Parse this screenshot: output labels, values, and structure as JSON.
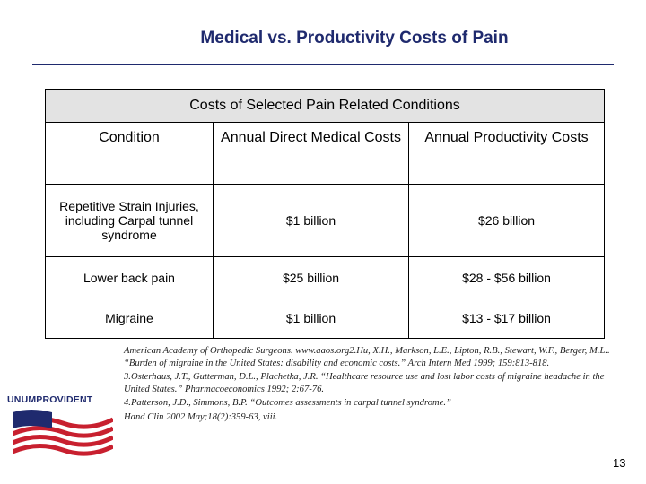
{
  "slide": {
    "title": "Medical vs. Productivity Costs of Pain",
    "page_number": "13"
  },
  "table": {
    "caption": "Costs of Selected Pain Related Conditions",
    "headers": [
      "Condition",
      "Annual Direct Medical Costs",
      "Annual Productivity Costs"
    ],
    "rows": [
      [
        "Repetitive Strain Injuries, including Carpal tunnel syndrome",
        "$1 billion",
        "$26 billion"
      ],
      [
        "Lower back pain",
        "$25 billion",
        "$28 - $56 billion"
      ],
      [
        "Migraine",
        "$1 billion",
        "$13 - $17 billion"
      ]
    ]
  },
  "references": [
    "American Academy of Orthopedic Surgeons. www.aaos.org2.Hu, X.H., Markson, L.E., Lipton, R.B., Stewart, W.F., Berger, M.L.. “Burden of migraine in the United States: disability and economic costs.” Arch Intern Med 1999; 159:813-818.",
    "3.Osterhaus, J.T., Gutterman, D.L., Plachetka, J.R. “Healthcare resource use and lost labor costs of migraine headache in the United States.” Pharmacoeconomics 1992; 2:67-76.",
    "4.Patterson, J.D., Simmons, B.P. “Outcomes assessments in carpal tunnel syndrome.”",
    "Hand Clin 2002 May;18(2):359-63, viii."
  ],
  "logo": {
    "text": "UNUMPROVIDENT",
    "colors": {
      "navy": "#1f2a6e",
      "red": "#c8202f"
    }
  }
}
